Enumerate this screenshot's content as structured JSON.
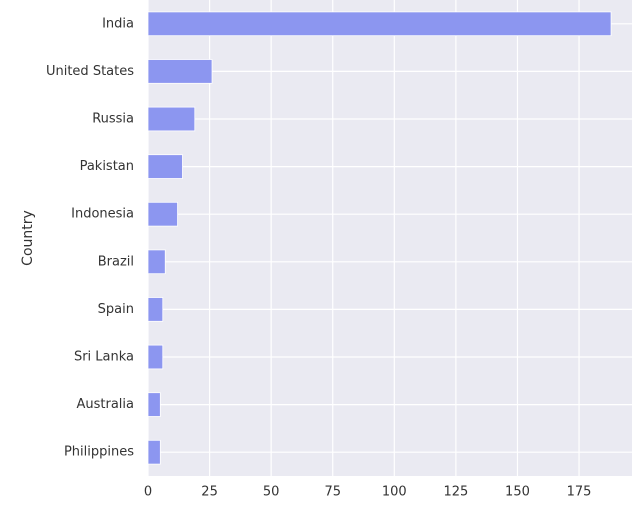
{
  "chart_data": {
    "type": "barh",
    "ylabel": "Country",
    "categories": [
      "India",
      "United States",
      "Russia",
      "Pakistan",
      "Indonesia",
      "Brazil",
      "Spain",
      "Sri Lanka",
      "Australia",
      "Philippines"
    ],
    "values": [
      188,
      26,
      19,
      14,
      12,
      7,
      6,
      6,
      5,
      5
    ],
    "color": "#8c96f0",
    "xlim": [
      0,
      196.5
    ],
    "xticks": [
      0,
      25,
      50,
      75,
      100,
      125,
      150,
      175
    ],
    "grid": true
  }
}
